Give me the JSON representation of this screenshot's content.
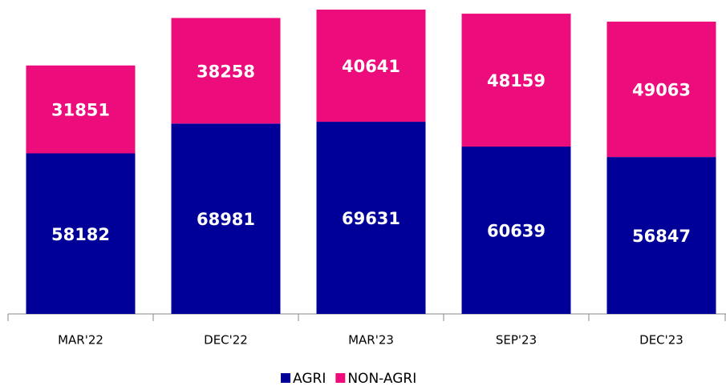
{
  "chart_data": {
    "type": "stacked_bar",
    "categories": [
      "MAR'22",
      "DEC'22",
      "MAR'23",
      "SEP'23",
      "DEC'23"
    ],
    "series": [
      {
        "name": "AGRI",
        "color": "#000099",
        "values": [
          58182,
          68981,
          69631,
          60639,
          56847
        ]
      },
      {
        "name": "NON-AGRI",
        "color": "#ed0c7b",
        "values": [
          31851,
          38258,
          40641,
          48159,
          49063
        ]
      }
    ],
    "legend": "bottom"
  }
}
